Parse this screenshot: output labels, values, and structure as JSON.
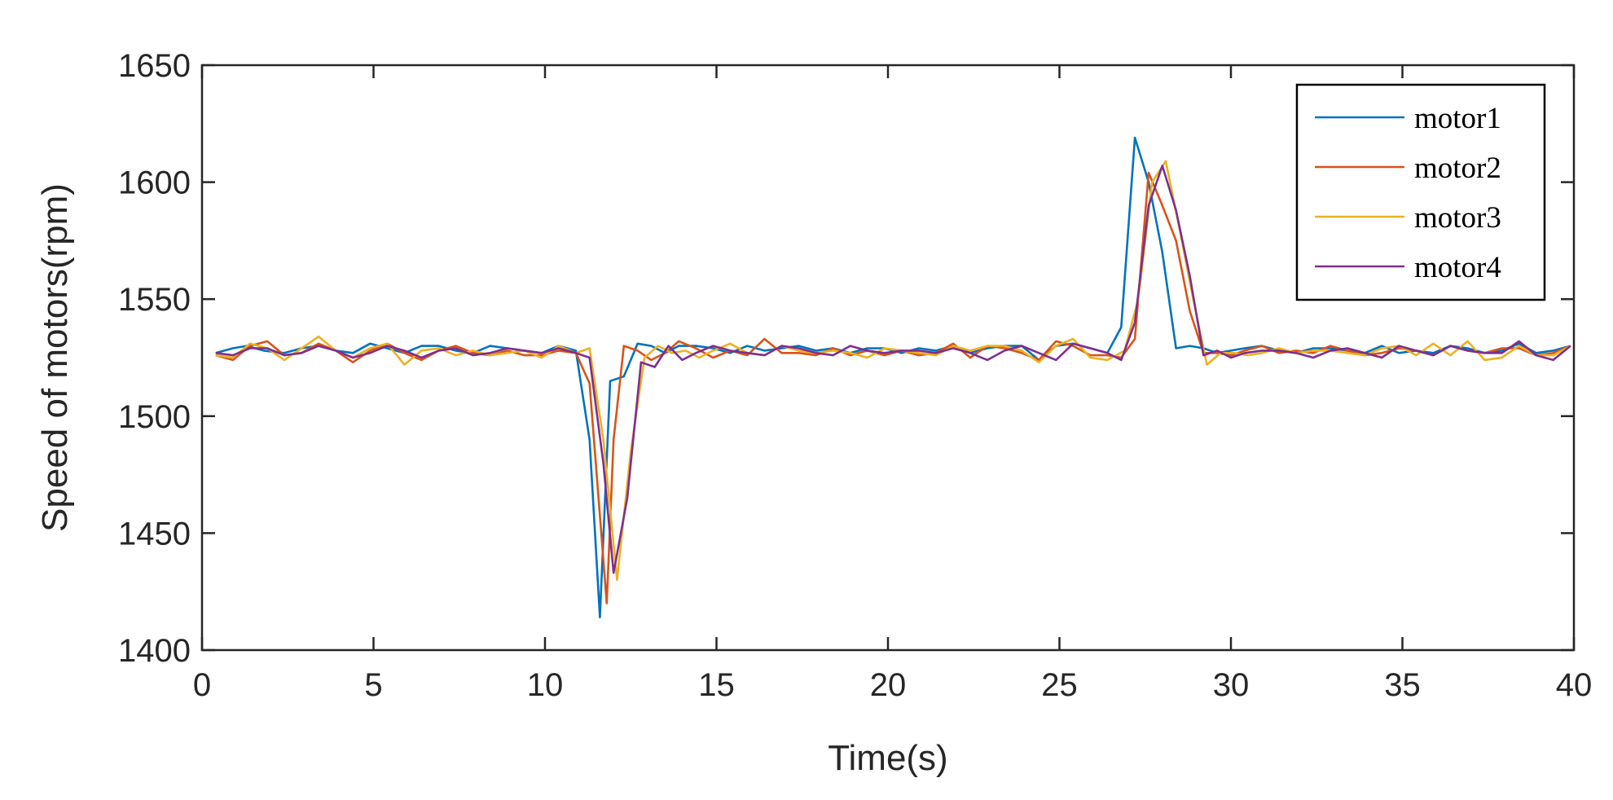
{
  "chart_data": {
    "type": "line",
    "xlabel": "Time(s)",
    "ylabel": "Speed of motors(rpm)",
    "xlim": [
      0,
      40
    ],
    "ylim": [
      1400,
      1650
    ],
    "xticks": [
      0,
      5,
      10,
      15,
      20,
      25,
      30,
      35,
      40
    ],
    "yticks": [
      1400,
      1450,
      1500,
      1550,
      1600,
      1650
    ],
    "xtick_labels": [
      "0",
      "5",
      "10",
      "15",
      "20",
      "25",
      "30",
      "35",
      "40"
    ],
    "ytick_labels": [
      "1400",
      "1450",
      "1500",
      "1550",
      "1600",
      "1650"
    ],
    "grid": false,
    "legend_position": "top-right",
    "x": [
      0.5,
      1,
      1.5,
      2,
      2.5,
      3,
      3.5,
      4,
      4.5,
      5,
      5.5,
      6,
      6.5,
      7,
      7.5,
      8,
      8.5,
      9,
      9.5,
      10,
      10.5,
      11,
      11.5,
      12,
      12.5,
      13,
      13.5,
      14,
      14.5,
      15,
      15.5,
      16,
      16.5,
      17,
      17.5,
      18,
      18.5,
      19,
      19.5,
      20,
      20.5,
      21,
      21.5,
      22,
      22.5,
      23,
      23.5,
      24,
      24.5,
      25,
      25.5,
      26,
      26.5,
      27,
      27.5,
      28,
      28.5,
      29,
      29.5,
      30,
      30.5,
      31,
      31.5,
      32,
      32.5,
      33,
      33.5,
      34,
      34.5,
      35,
      35.5,
      36,
      36.5,
      37,
      37.5,
      38,
      38.5,
      39,
      39.5,
      40
    ],
    "series": [
      {
        "name": "motor1",
        "color": "#0072BD",
        "x": [
          0.4,
          0.9,
          1.3,
          1.8,
          2.4,
          2.9,
          3.4,
          3.9,
          4.4,
          4.9,
          5.4,
          5.9,
          6.4,
          6.9,
          7.4,
          7.9,
          8.4,
          8.9,
          9.4,
          9.9,
          10.4,
          10.9,
          11.3,
          11.6,
          11.9,
          12.3,
          12.7,
          13.1,
          13.5,
          13.9,
          14.4,
          14.9,
          15.4,
          15.9,
          16.4,
          16.9,
          17.4,
          17.9,
          18.4,
          18.9,
          19.4,
          19.9,
          20.4,
          20.9,
          21.4,
          21.9,
          22.4,
          22.9,
          23.4,
          23.9,
          24.4,
          24.9,
          25.4,
          25.9,
          26.4,
          26.8,
          27.2,
          27.6,
          28.0,
          28.4,
          28.8,
          29.2,
          29.6,
          30.0,
          30.4,
          30.9,
          31.4,
          31.9,
          32.4,
          32.9,
          33.4,
          33.9,
          34.4,
          34.9,
          35.4,
          35.9,
          36.4,
          36.9,
          37.4,
          37.9,
          38.4,
          38.9,
          39.4,
          39.9
        ],
        "y": [
          1527,
          1529,
          1530,
          1528,
          1527,
          1529,
          1530,
          1528,
          1527,
          1531,
          1529,
          1527,
          1530,
          1530,
          1528,
          1527,
          1530,
          1529,
          1528,
          1527,
          1530,
          1528,
          1490,
          1414,
          1515,
          1517,
          1531,
          1530,
          1527,
          1530,
          1530,
          1529,
          1527,
          1530,
          1528,
          1529,
          1530,
          1528,
          1529,
          1527,
          1529,
          1529,
          1527,
          1529,
          1528,
          1530,
          1527,
          1529,
          1530,
          1530,
          1524,
          1530,
          1531,
          1529,
          1527,
          1538,
          1619,
          1600,
          1570,
          1529,
          1530,
          1529,
          1527,
          1528,
          1529,
          1530,
          1528,
          1527,
          1529,
          1529,
          1528,
          1527,
          1530,
          1527,
          1528,
          1527,
          1530,
          1529,
          1527,
          1528,
          1531,
          1527,
          1528,
          1530
        ]
      },
      {
        "name": "motor2",
        "color": "#D95319",
        "x": [
          0.4,
          0.9,
          1.4,
          1.9,
          2.4,
          2.9,
          3.4,
          3.9,
          4.4,
          4.9,
          5.4,
          5.9,
          6.4,
          6.9,
          7.4,
          7.9,
          8.4,
          8.9,
          9.4,
          9.9,
          10.4,
          10.9,
          11.3,
          11.8,
          12.0,
          12.3,
          12.7,
          13.1,
          13.5,
          13.9,
          14.4,
          14.9,
          15.4,
          15.9,
          16.4,
          16.9,
          17.4,
          17.9,
          18.4,
          18.9,
          19.4,
          19.9,
          20.4,
          20.9,
          21.4,
          21.9,
          22.4,
          22.9,
          23.4,
          23.9,
          24.4,
          24.9,
          25.4,
          25.9,
          26.4,
          26.8,
          27.2,
          27.6,
          28.0,
          28.4,
          28.8,
          29.2,
          29.6,
          30.0,
          30.4,
          30.9,
          31.4,
          31.9,
          32.4,
          32.9,
          33.4,
          33.9,
          34.4,
          34.9,
          35.4,
          35.9,
          36.4,
          36.9,
          37.4,
          37.9,
          38.4,
          38.9,
          39.4,
          39.9
        ],
        "y": [
          1526,
          1524,
          1530,
          1532,
          1526,
          1527,
          1531,
          1528,
          1523,
          1528,
          1531,
          1527,
          1524,
          1528,
          1530,
          1527,
          1526,
          1528,
          1526,
          1526,
          1528,
          1527,
          1514,
          1420,
          1490,
          1530,
          1528,
          1524,
          1527,
          1532,
          1529,
          1525,
          1528,
          1526,
          1533,
          1527,
          1527,
          1526,
          1529,
          1526,
          1528,
          1526,
          1528,
          1526,
          1527,
          1531,
          1525,
          1530,
          1529,
          1527,
          1524,
          1532,
          1530,
          1526,
          1526,
          1525,
          1533,
          1604,
          1590,
          1575,
          1545,
          1527,
          1527,
          1526,
          1528,
          1530,
          1527,
          1528,
          1527,
          1530,
          1528,
          1526,
          1527,
          1529,
          1528,
          1526,
          1530,
          1528,
          1527,
          1529,
          1529,
          1526,
          1527,
          1530
        ]
      },
      {
        "name": "motor3",
        "color": "#EDB120",
        "x": [
          0.4,
          0.9,
          1.4,
          1.9,
          2.4,
          2.9,
          3.4,
          3.9,
          4.4,
          4.9,
          5.4,
          5.9,
          6.4,
          6.9,
          7.4,
          7.9,
          8.4,
          8.9,
          9.4,
          9.9,
          10.4,
          10.9,
          11.3,
          11.7,
          12.1,
          12.5,
          12.9,
          13.3,
          13.7,
          14.1,
          14.5,
          14.9,
          15.4,
          15.9,
          16.4,
          16.9,
          17.4,
          17.9,
          18.4,
          18.9,
          19.4,
          19.9,
          20.4,
          20.9,
          21.4,
          21.9,
          22.4,
          22.9,
          23.4,
          23.9,
          24.4,
          24.9,
          25.4,
          25.9,
          26.4,
          26.9,
          27.3,
          27.7,
          28.1,
          28.5,
          28.9,
          29.3,
          29.7,
          30.1,
          30.5,
          30.9,
          31.4,
          31.9,
          32.4,
          32.9,
          33.4,
          33.9,
          34.4,
          34.9,
          35.4,
          35.9,
          36.4,
          36.9,
          37.4,
          37.9,
          38.4,
          38.9,
          39.4,
          39.9
        ],
        "y": [
          1526,
          1525,
          1531,
          1529,
          1524,
          1529,
          1534,
          1528,
          1525,
          1529,
          1531,
          1522,
          1528,
          1529,
          1526,
          1528,
          1526,
          1527,
          1528,
          1525,
          1530,
          1527,
          1529,
          1490,
          1430,
          1485,
          1525,
          1530,
          1527,
          1528,
          1525,
          1528,
          1531,
          1527,
          1526,
          1530,
          1528,
          1527,
          1528,
          1527,
          1525,
          1529,
          1528,
          1527,
          1526,
          1530,
          1528,
          1530,
          1530,
          1528,
          1523,
          1530,
          1533,
          1525,
          1524,
          1528,
          1550,
          1600,
          1609,
          1580,
          1550,
          1522,
          1527,
          1527,
          1526,
          1527,
          1529,
          1527,
          1528,
          1528,
          1527,
          1526,
          1529,
          1530,
          1526,
          1531,
          1526,
          1532,
          1524,
          1525,
          1530,
          1526,
          1526,
          1530
        ]
      },
      {
        "name": "motor4",
        "color": "#7E2F8E",
        "x": [
          0.4,
          0.9,
          1.4,
          1.9,
          2.4,
          2.9,
          3.4,
          3.9,
          4.4,
          4.9,
          5.4,
          5.9,
          6.4,
          6.9,
          7.4,
          7.9,
          8.4,
          8.9,
          9.4,
          9.9,
          10.4,
          10.9,
          11.3,
          11.7,
          12.0,
          12.4,
          12.8,
          13.2,
          13.6,
          14.0,
          14.4,
          14.9,
          15.4,
          15.9,
          16.4,
          16.9,
          17.4,
          17.9,
          18.4,
          18.9,
          19.4,
          19.9,
          20.4,
          20.9,
          21.4,
          21.9,
          22.4,
          22.9,
          23.4,
          23.9,
          24.4,
          24.9,
          25.4,
          25.9,
          26.4,
          26.8,
          27.2,
          27.6,
          28.0,
          28.4,
          28.8,
          29.2,
          29.6,
          30.0,
          30.4,
          30.9,
          31.4,
          31.9,
          32.4,
          32.9,
          33.4,
          33.9,
          34.4,
          34.9,
          35.4,
          35.9,
          36.4,
          36.9,
          37.4,
          37.9,
          38.4,
          38.9,
          39.4,
          39.9
        ],
        "y": [
          1527,
          1526,
          1529,
          1529,
          1526,
          1527,
          1530,
          1528,
          1525,
          1527,
          1530,
          1528,
          1525,
          1528,
          1529,
          1526,
          1527,
          1529,
          1528,
          1527,
          1529,
          1527,
          1525,
          1480,
          1433,
          1465,
          1523,
          1521,
          1530,
          1524,
          1527,
          1530,
          1528,
          1527,
          1526,
          1530,
          1529,
          1527,
          1526,
          1530,
          1528,
          1527,
          1528,
          1528,
          1527,
          1529,
          1527,
          1524,
          1528,
          1530,
          1527,
          1524,
          1531,
          1529,
          1527,
          1524,
          1540,
          1590,
          1607,
          1588,
          1560,
          1526,
          1528,
          1525,
          1527,
          1528,
          1528,
          1527,
          1525,
          1528,
          1529,
          1527,
          1525,
          1530,
          1528,
          1526,
          1530,
          1528,
          1527,
          1527,
          1532,
          1526,
          1524,
          1530
        ]
      }
    ]
  }
}
